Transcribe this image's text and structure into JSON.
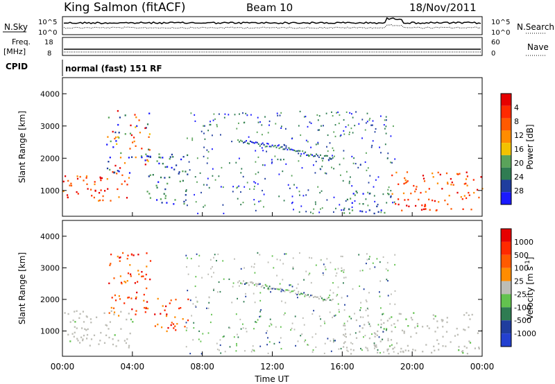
{
  "header": {
    "station": "King Salmon (fitACF)",
    "beam": "Beam 10",
    "date": "18/Nov/2011"
  },
  "noise_panel": {
    "left_label": "N.Sky",
    "right_label": "N.Search",
    "ticks_left": [
      "10^5",
      "10^0"
    ],
    "ticks_right": [
      "10^5",
      "10^0"
    ]
  },
  "freq_panel": {
    "left_label_1": "Freq.",
    "left_label_2": "[MHz]",
    "right_label": "Nave",
    "ticks_left": [
      "18",
      "8"
    ],
    "ticks_right": [
      "60",
      "0"
    ]
  },
  "cpid_panel": {
    "label": "CPID",
    "mode": "normal (fast) 151 RF"
  },
  "x_axis": {
    "label": "Time UT",
    "ticks": [
      "00:00",
      "04:00",
      "08:00",
      "12:00",
      "16:00",
      "20:00",
      "00:00"
    ]
  },
  "colors": {
    "power": [
      "#1a1aff",
      "#1f3d9e",
      "#2f7c52",
      "#5aa35a",
      "#f2c200",
      "#ff8c00",
      "#ff5a00",
      "#ff2a00",
      "#e60000"
    ],
    "velocity": [
      "#2340d0",
      "#1f3d9e",
      "#2f7c52",
      "#63c24f",
      "#bdbdb6",
      "#ff8c00",
      "#ff5a00",
      "#ff2a00",
      "#e60000"
    ]
  },
  "chart_data": [
    {
      "type": "heatmap",
      "title": "",
      "xlabel": "Time UT",
      "ylabel": "Slant Range [km]",
      "xlim": [
        0,
        24
      ],
      "ylim": [
        200,
        4500
      ],
      "yticks": [
        "1000",
        "2000",
        "3000",
        "4000"
      ],
      "colorbar": {
        "label": "Power [dB]",
        "ticks": [
          "4",
          "8",
          "12",
          "16",
          "20",
          "24",
          "28"
        ]
      },
      "features": [
        {
          "t0": 0.0,
          "t1": 3.8,
          "r0": 700,
          "r1": 1500,
          "level": "high"
        },
        {
          "t0": 2.5,
          "t1": 5.0,
          "r0": 1500,
          "r1": 3500,
          "level": "mixed"
        },
        {
          "t0": 4.8,
          "t1": 7.2,
          "r0": 600,
          "r1": 2200,
          "level": "low"
        },
        {
          "t0": 16.0,
          "t1": 18.8,
          "r0": 300,
          "r1": 1000,
          "level": "low"
        },
        {
          "t0": 18.8,
          "t1": 24.0,
          "r0": 400,
          "r1": 1600,
          "level": "high"
        }
      ]
    },
    {
      "type": "heatmap",
      "title": "",
      "xlabel": "Time UT",
      "ylabel": "Slant Range [km]",
      "xlim": [
        0,
        24
      ],
      "ylim": [
        200,
        4500
      ],
      "yticks": [
        "1000",
        "2000",
        "3000",
        "4000"
      ],
      "colorbar": {
        "label": "Velocity [m s^-1]",
        "ticks": [
          "1000",
          "500",
          "100",
          "25",
          "-25",
          "-100",
          "-500",
          "-1000"
        ]
      },
      "features": [
        {
          "t0": 0.0,
          "t1": 4.0,
          "r0": 500,
          "r1": 1700,
          "level": "ground"
        },
        {
          "t0": 2.5,
          "t1": 5.0,
          "r0": 1500,
          "r1": 3500,
          "level": "away"
        },
        {
          "t0": 5.0,
          "t1": 7.2,
          "r0": 1000,
          "r1": 2100,
          "level": "away"
        },
        {
          "t0": 16.0,
          "t1": 24.0,
          "r0": 300,
          "r1": 1600,
          "level": "ground"
        }
      ]
    }
  ]
}
